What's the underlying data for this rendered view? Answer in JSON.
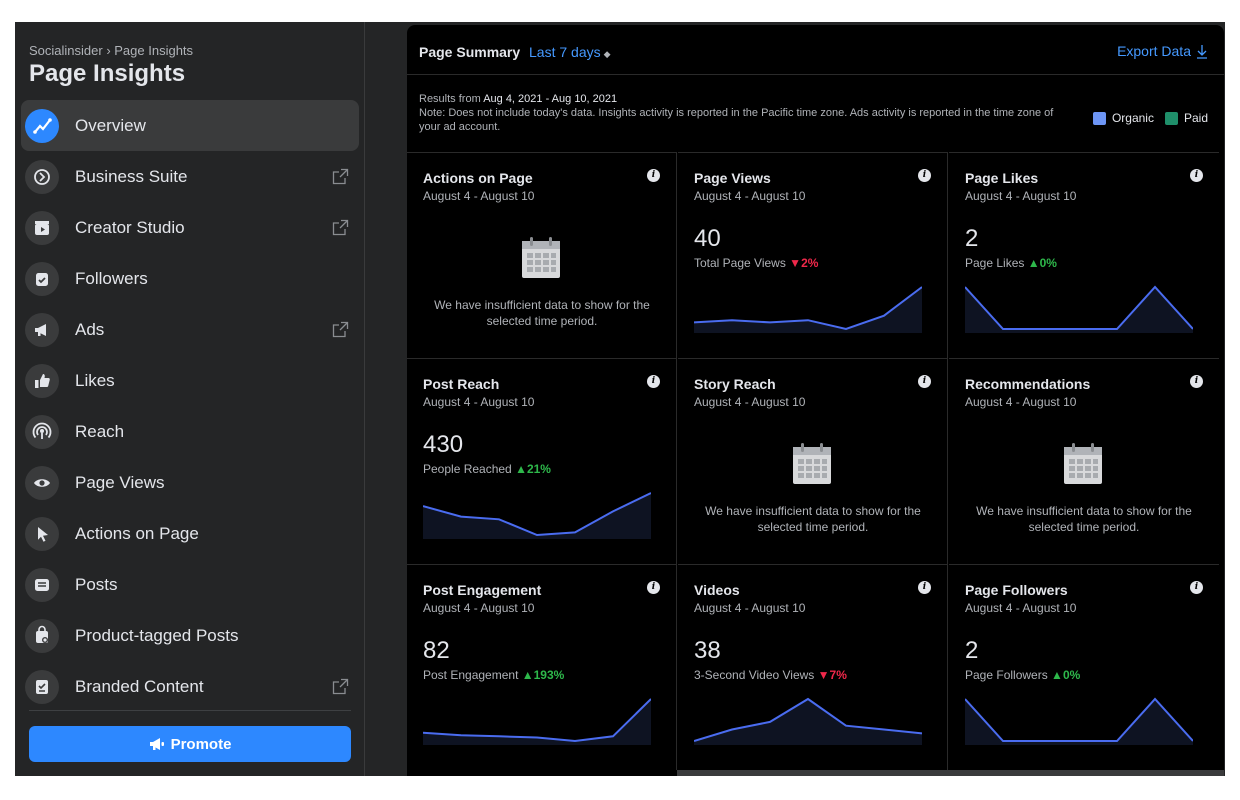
{
  "sidebar": {
    "breadcrumb": "Socialinsider › Page Insights",
    "title": "Page Insights",
    "items": [
      {
        "label": "Overview",
        "icon": "overview-icon",
        "active": true
      },
      {
        "label": "Business Suite",
        "icon": "business-suite-icon",
        "external": true
      },
      {
        "label": "Creator Studio",
        "icon": "creator-studio-icon",
        "external": true
      },
      {
        "label": "Followers",
        "icon": "followers-icon"
      },
      {
        "label": "Ads",
        "icon": "megaphone-icon",
        "external": true
      },
      {
        "label": "Likes",
        "icon": "thumbs-up-icon"
      },
      {
        "label": "Reach",
        "icon": "reach-icon"
      },
      {
        "label": "Page Views",
        "icon": "eye-icon"
      },
      {
        "label": "Actions on Page",
        "icon": "cursor-icon"
      },
      {
        "label": "Posts",
        "icon": "posts-icon"
      },
      {
        "label": "Product-tagged Posts",
        "icon": "product-tag-icon"
      },
      {
        "label": "Branded Content",
        "icon": "branded-content-icon",
        "external": true
      }
    ],
    "promote_label": "Promote"
  },
  "header": {
    "title": "Page Summary",
    "range": "Last 7 days",
    "export_label": "Export Data"
  },
  "results": {
    "prefix": "Results from ",
    "range": "Aug 4, 2021 - Aug 10, 2021",
    "note": "Note: Does not include today's data. Insights activity is reported in the Pacific time zone. Ads activity is reported in the time zone of your ad account."
  },
  "legend": [
    {
      "label": "Organic",
      "color": "#6d95f5"
    },
    {
      "label": "Paid",
      "color": "#1f8f6a"
    }
  ],
  "insufficient_text": "We have insufficient data to show for the selected time period.",
  "cards": [
    {
      "title": "Actions on Page",
      "date": "August 4 - August 10",
      "empty": true
    },
    {
      "title": "Page Views",
      "date": "August 4 - August 10",
      "value": "40",
      "sub": "Total Page Views",
      "change": "2%",
      "dir": "down",
      "series": [
        6,
        7,
        6,
        7,
        3,
        9,
        22
      ]
    },
    {
      "title": "Page Likes",
      "date": "August 4 - August 10",
      "value": "2",
      "sub": "Page Likes",
      "change": "0%",
      "dir": "up",
      "series": [
        1,
        0,
        0,
        0,
        0,
        1,
        0
      ]
    },
    {
      "title": "Post Reach",
      "date": "August 4 - August 10",
      "value": "430",
      "sub": "People Reached",
      "change": "21%",
      "dir": "up",
      "series": [
        18,
        14,
        13,
        7,
        8,
        16,
        23
      ]
    },
    {
      "title": "Story Reach",
      "date": "August 4 - August 10",
      "empty": true
    },
    {
      "title": "Recommendations",
      "date": "August 4 - August 10",
      "empty": true
    },
    {
      "title": "Post Engagement",
      "date": "August 4 - August 10",
      "value": "82",
      "sub": "Post Engagement",
      "change": "193%",
      "dir": "up",
      "series": [
        9,
        7,
        6,
        5,
        2,
        6,
        38
      ]
    },
    {
      "title": "Videos",
      "date": "August 4 - August 10",
      "value": "38",
      "sub": "3-Second Video Views",
      "change": "7%",
      "dir": "down",
      "series": [
        1,
        4,
        6,
        12,
        5,
        4,
        3
      ]
    },
    {
      "title": "Page Followers",
      "date": "August 4 - August 10",
      "value": "2",
      "sub": "Page Followers",
      "change": "0%",
      "dir": "up",
      "series": [
        1,
        0,
        0,
        0,
        0,
        1,
        0
      ]
    }
  ]
}
